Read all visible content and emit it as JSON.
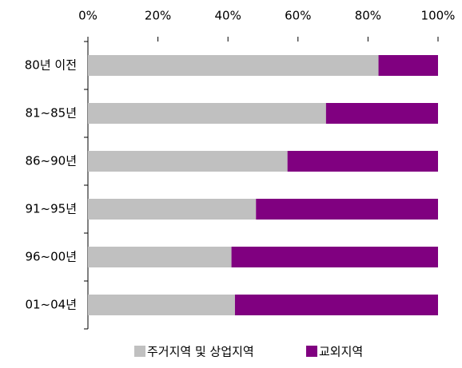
{
  "chart_data": {
    "type": "bar",
    "orientation": "horizontal",
    "stacked": true,
    "categories": [
      "80년 이전",
      "81~85년",
      "86~90년",
      "91~95년",
      "96~00년",
      "01~04년"
    ],
    "series": [
      {
        "name": "주거지역 및 상업지역",
        "color": "#c0c0c0",
        "values": [
          83,
          68,
          57,
          48,
          41,
          42
        ]
      },
      {
        "name": "교외지역",
        "color": "#800080",
        "values": [
          17,
          32,
          43,
          52,
          59,
          58
        ]
      }
    ],
    "xlim": [
      0,
      100
    ],
    "xticks": [
      {
        "value": 0,
        "label": "0%"
      },
      {
        "value": 20,
        "label": "20%"
      },
      {
        "value": 40,
        "label": "40%"
      },
      {
        "value": 60,
        "label": "60%"
      },
      {
        "value": 80,
        "label": "80%"
      },
      {
        "value": 100,
        "label": "100%"
      }
    ],
    "legend": "bottom"
  }
}
